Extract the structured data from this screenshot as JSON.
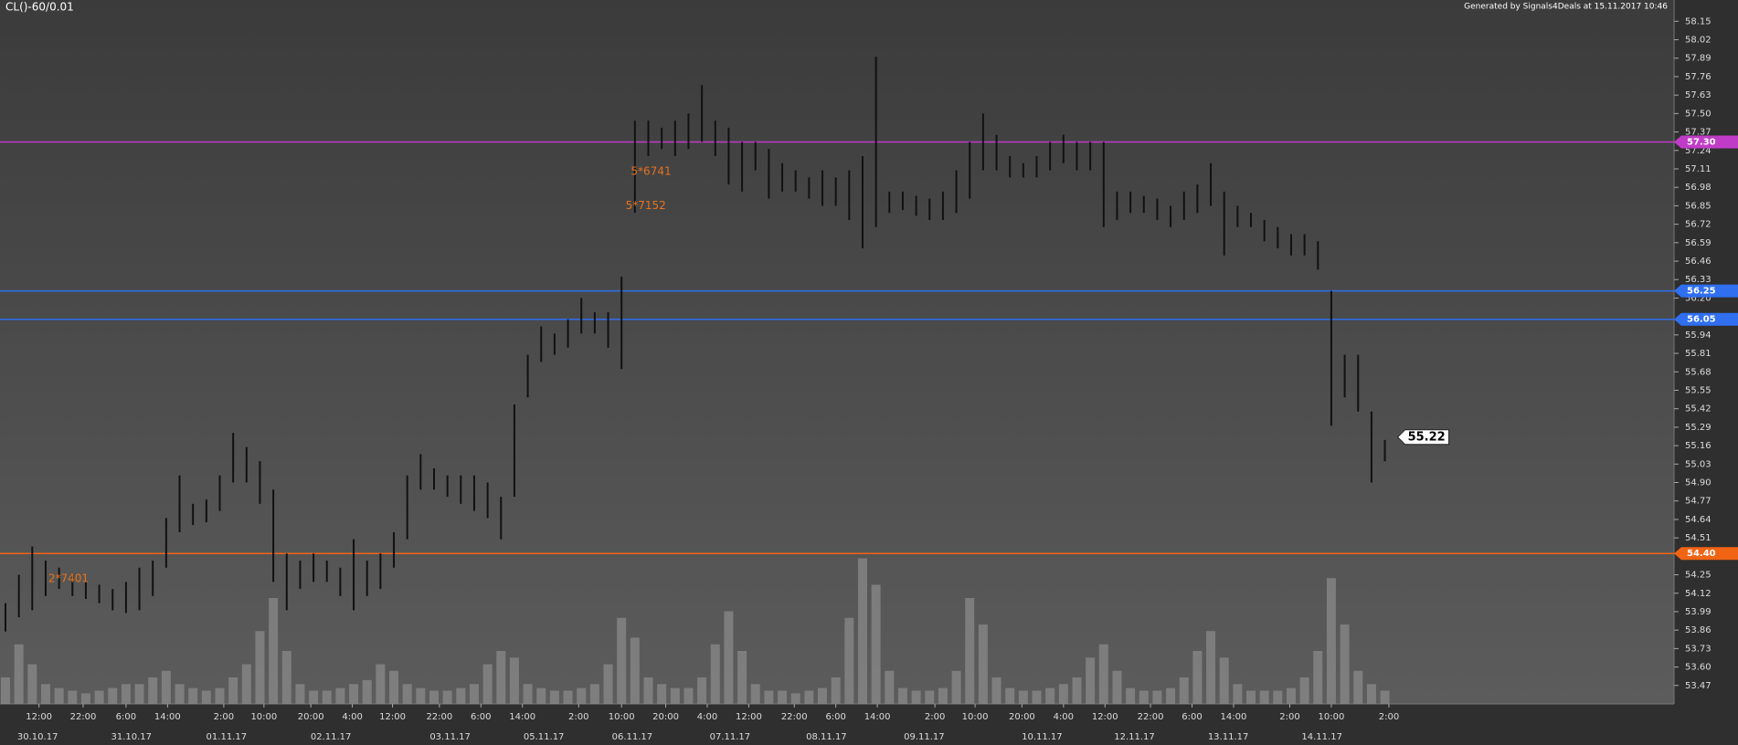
{
  "chart_data": {
    "type": "ohlc",
    "title": "CL()-60/0.01",
    "subtitle": "Generated by Signals4Deals at 15.11.2017 10:46",
    "bar_color": "#111111",
    "volume_color": "#8a8a8a",
    "ylim": [
      53.34,
      58.3
    ],
    "xlim": [
      0,
      125
    ],
    "yticks": [
      58.15,
      58.02,
      57.89,
      57.76,
      57.63,
      {
        "value": 57.5,
        "label": "57.50"
      },
      57.37,
      57.24,
      57.11,
      56.98,
      56.85,
      56.72,
      56.59,
      56.46,
      56.33,
      {
        "value": 56.2,
        "label": "56.20"
      },
      55.94,
      55.81,
      55.68,
      55.55,
      55.42,
      55.29,
      55.16,
      55.03,
      {
        "value": 54.9,
        "label": "54.90"
      },
      54.77,
      54.64,
      54.51,
      54.25,
      54.12,
      53.99,
      53.86,
      53.73,
      {
        "value": 53.6,
        "label": "53.60"
      },
      53.47
    ],
    "xticks": [
      {
        "value": 2.5,
        "label": "12:00"
      },
      {
        "value": 5.8,
        "label": "22:00"
      },
      {
        "value": 9,
        "label": "6:00"
      },
      {
        "value": 12.1,
        "label": "14:00"
      },
      {
        "value": 16.3,
        "label": "2:00"
      },
      {
        "value": 19.3,
        "label": "10:00"
      },
      {
        "value": 22.8,
        "label": "20:00"
      },
      {
        "value": 25.9,
        "label": "4:00"
      },
      {
        "value": 28.9,
        "label": "12:00"
      },
      {
        "value": 32.4,
        "label": "22:00"
      },
      {
        "value": 35.5,
        "label": "6:00"
      },
      {
        "value": 38.6,
        "label": "14:00"
      },
      {
        "value": 42.8,
        "label": "2:00"
      },
      {
        "value": 46,
        "label": "10:00"
      },
      {
        "value": 49.3,
        "label": "20:00"
      },
      {
        "value": 52.4,
        "label": "4:00"
      },
      {
        "value": 55.5,
        "label": "12:00"
      },
      {
        "value": 58.9,
        "label": "22:00"
      },
      {
        "value": 62,
        "label": "6:00"
      },
      {
        "value": 65.1,
        "label": "14:00"
      },
      {
        "value": 69.4,
        "label": "2:00"
      },
      {
        "value": 72.4,
        "label": "10:00"
      },
      {
        "value": 75.9,
        "label": "20:00"
      },
      {
        "value": 79,
        "label": "4:00"
      },
      {
        "value": 82.1,
        "label": "12:00"
      },
      {
        "value": 85.5,
        "label": "22:00"
      },
      {
        "value": 88.6,
        "label": "6:00"
      },
      {
        "value": 91.7,
        "label": "14:00"
      },
      {
        "value": 95.9,
        "label": "2:00"
      },
      {
        "value": 99,
        "label": "10:00"
      },
      {
        "value": 103.3,
        "label": "2:00"
      }
    ],
    "date_ticks": [
      {
        "value": 2.4,
        "label": "30.10.17"
      },
      {
        "value": 9.4,
        "label": "31.10.17"
      },
      {
        "value": 16.5,
        "label": "01.11.17"
      },
      {
        "value": 24.3,
        "label": "02.11.17"
      },
      {
        "value": 33.2,
        "label": "03.11.17"
      },
      {
        "value": 40.2,
        "label": "05.11.17"
      },
      {
        "value": 46.8,
        "label": "06.11.17"
      },
      {
        "value": 54.1,
        "label": "07.11.17"
      },
      {
        "value": 61.3,
        "label": "08.11.17"
      },
      {
        "value": 68.6,
        "label": "09.11.17"
      },
      {
        "value": 77.4,
        "label": "10.11.17"
      },
      {
        "value": 84.3,
        "label": "12.11.17"
      },
      {
        "value": 91.3,
        "label": "13.11.17"
      },
      {
        "value": 98.3,
        "label": "14.11.17"
      }
    ],
    "low": [
      53.85,
      53.95,
      54.0,
      54.1,
      54.15,
      54.1,
      54.08,
      54.05,
      54.0,
      53.98,
      54.0,
      54.1,
      54.3,
      54.55,
      54.6,
      54.62,
      54.7,
      54.9,
      54.9,
      54.75,
      54.2,
      54.0,
      54.15,
      54.2,
      54.2,
      54.1,
      54.0,
      54.1,
      54.15,
      54.3,
      54.5,
      54.85,
      54.85,
      54.8,
      54.75,
      54.7,
      54.65,
      54.5,
      54.8,
      55.5,
      55.75,
      55.8,
      55.85,
      55.95,
      55.95,
      55.85,
      55.7,
      56.8,
      57.2,
      57.25,
      57.2,
      57.25,
      57.3,
      57.2,
      57.0,
      56.95,
      57.1,
      56.9,
      56.95,
      56.95,
      56.9,
      56.85,
      56.85,
      56.75,
      56.55,
      56.7,
      56.8,
      56.82,
      56.78,
      56.75,
      56.75,
      56.8,
      56.9,
      57.1,
      57.1,
      57.05,
      57.05,
      57.05,
      57.1,
      57.15,
      57.1,
      57.1,
      56.7,
      56.75,
      56.8,
      56.8,
      56.75,
      56.7,
      56.75,
      56.8,
      56.85,
      56.5,
      56.7,
      56.7,
      56.6,
      56.55,
      56.5,
      56.5,
      56.4,
      55.3,
      55.5,
      55.4,
      54.9,
      55.05
    ],
    "high": [
      54.05,
      54.25,
      54.45,
      54.35,
      54.3,
      54.25,
      54.2,
      54.18,
      54.15,
      54.2,
      54.3,
      54.35,
      54.65,
      54.95,
      54.75,
      54.78,
      54.95,
      55.25,
      55.15,
      55.05,
      54.85,
      54.4,
      54.35,
      54.4,
      54.35,
      54.3,
      54.5,
      54.35,
      54.4,
      54.55,
      54.95,
      55.1,
      55.0,
      54.95,
      54.95,
      54.95,
      54.9,
      54.8,
      55.45,
      55.8,
      56.0,
      55.95,
      56.05,
      56.2,
      56.1,
      56.1,
      56.35,
      57.45,
      57.45,
      57.4,
      57.45,
      57.5,
      57.7,
      57.45,
      57.4,
      57.3,
      57.3,
      57.25,
      57.15,
      57.1,
      57.05,
      57.1,
      57.05,
      57.1,
      57.2,
      57.9,
      56.95,
      56.95,
      56.92,
      56.9,
      56.95,
      57.1,
      57.3,
      57.5,
      57.35,
      57.2,
      57.15,
      57.2,
      57.3,
      57.35,
      57.3,
      57.3,
      57.3,
      56.95,
      56.95,
      56.92,
      56.9,
      56.85,
      56.95,
      57.0,
      57.15,
      56.95,
      56.85,
      56.8,
      56.75,
      56.7,
      56.65,
      56.65,
      56.6,
      56.25,
      55.8,
      55.8,
      55.4,
      55.2
    ],
    "volume": [
      20,
      45,
      30,
      15,
      12,
      10,
      8,
      10,
      12,
      15,
      15,
      20,
      25,
      15,
      12,
      10,
      12,
      20,
      30,
      55,
      80,
      40,
      15,
      10,
      10,
      12,
      15,
      18,
      30,
      25,
      15,
      12,
      10,
      10,
      12,
      15,
      30,
      40,
      35,
      15,
      12,
      10,
      10,
      12,
      15,
      30,
      65,
      50,
      20,
      15,
      12,
      12,
      20,
      45,
      70,
      40,
      15,
      10,
      10,
      8,
      10,
      12,
      20,
      65,
      110,
      90,
      25,
      12,
      10,
      10,
      12,
      25,
      80,
      60,
      20,
      12,
      10,
      10,
      12,
      15,
      20,
      35,
      45,
      25,
      12,
      10,
      10,
      12,
      20,
      40,
      55,
      35,
      15,
      10,
      10,
      10,
      12,
      20,
      40,
      95,
      60,
      25,
      15,
      10
    ],
    "levels": [
      {
        "value": 57.3,
        "label": "57.30",
        "color": "#c03cc8"
      },
      {
        "value": 56.25,
        "color": "#2f6ff0"
      },
      {
        "value": 56.05,
        "color": "#2f6ff0"
      },
      {
        "value": 54.4,
        "label": "54.40",
        "color": "#f06414"
      }
    ],
    "last_price": 55.22,
    "annotations": [
      "5*6741",
      "5*7152",
      "2*7401"
    ],
    "annotation_color": "#e8731e"
  }
}
